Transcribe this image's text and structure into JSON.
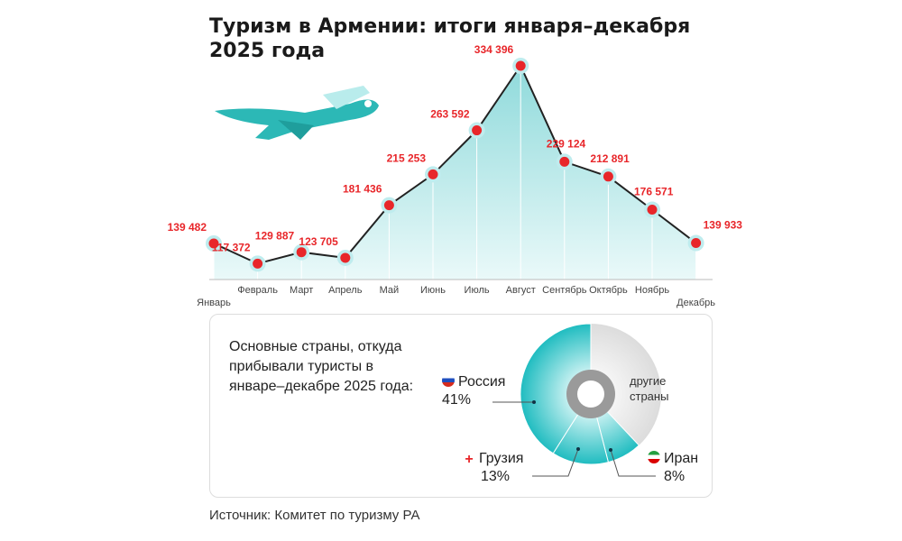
{
  "title": "Туризм в Армении: итоги января–декабря 2025 года",
  "chart_data": [
    {
      "type": "line",
      "title": "Туризм в Армении: итоги января–декабря 2025 года",
      "categories": [
        "Январь",
        "Февраль",
        "Март",
        "Апрель",
        "Май",
        "Июнь",
        "Июль",
        "Август",
        "Сентябрь",
        "Октябрь",
        "Ноябрь",
        "Декабрь"
      ],
      "values": [
        139482,
        117372,
        129887,
        123705,
        181436,
        215253,
        263592,
        334396,
        229124,
        212891,
        176571,
        139933
      ],
      "value_labels": [
        "139 482",
        "117 372",
        "129 887",
        "123 705",
        "181 436",
        "215 253",
        "263 592",
        "334 396",
        "229 124",
        "212 891",
        "176 571",
        "139 933"
      ],
      "xlabel": "",
      "ylabel": "",
      "grid": false
    },
    {
      "type": "pie",
      "title": "Основные страны, откуда прибывали туристы в январе–декабре 2025 года:",
      "slices": [
        {
          "name": "другие страны",
          "value": 38,
          "label": ""
        },
        {
          "name": "Иран",
          "value": 8,
          "label": "8%"
        },
        {
          "name": "Грузия",
          "value": 13,
          "label": "13%"
        },
        {
          "name": "Россия",
          "value": 41,
          "label": "41%"
        }
      ]
    }
  ],
  "colors": {
    "line": "#222",
    "point": "#e8262a",
    "area": "#bfe9ea",
    "teal": "#1fbcc0",
    "grey": "#e2e2e2",
    "label": "#e8262a"
  },
  "pie_caption": "Основные страны, откуда прибывали туристы в январе–декабре 2025 года:",
  "source": "Источник: Комитет по туризму РА"
}
